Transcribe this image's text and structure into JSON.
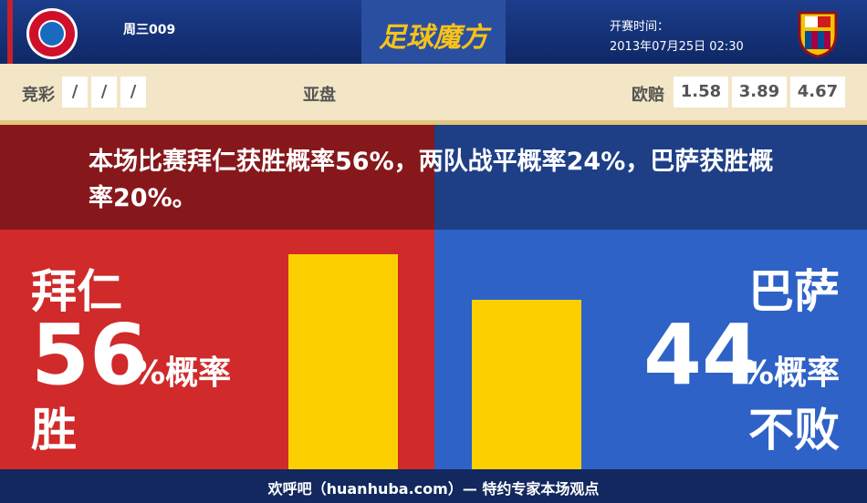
{
  "header": {
    "match": "周三009",
    "logo": "足球魔方",
    "kickoff_label": "开赛时间：",
    "kickoff_time": "2013年07月25日 02:30"
  },
  "odds": {
    "jingcai_label": "竞彩",
    "jingcai": [
      "/",
      "/",
      "/"
    ],
    "yapan_label": "亚盘",
    "oupei_label": "欧赔",
    "oupei": [
      1.58,
      3.89,
      4.67
    ]
  },
  "summary": "本场比赛拜仁获胜概率56%，两队战平概率24%，巴萨获胜概率20%。",
  "left": {
    "team": "拜仁",
    "probability": 56,
    "unit": "%概率",
    "outcome": "胜"
  },
  "right": {
    "team": "巴萨",
    "probability": 44,
    "unit": "%概率",
    "outcome": "不败"
  },
  "footer": "欢呼吧（huanhuba.com）— 特约专家本场观点"
}
